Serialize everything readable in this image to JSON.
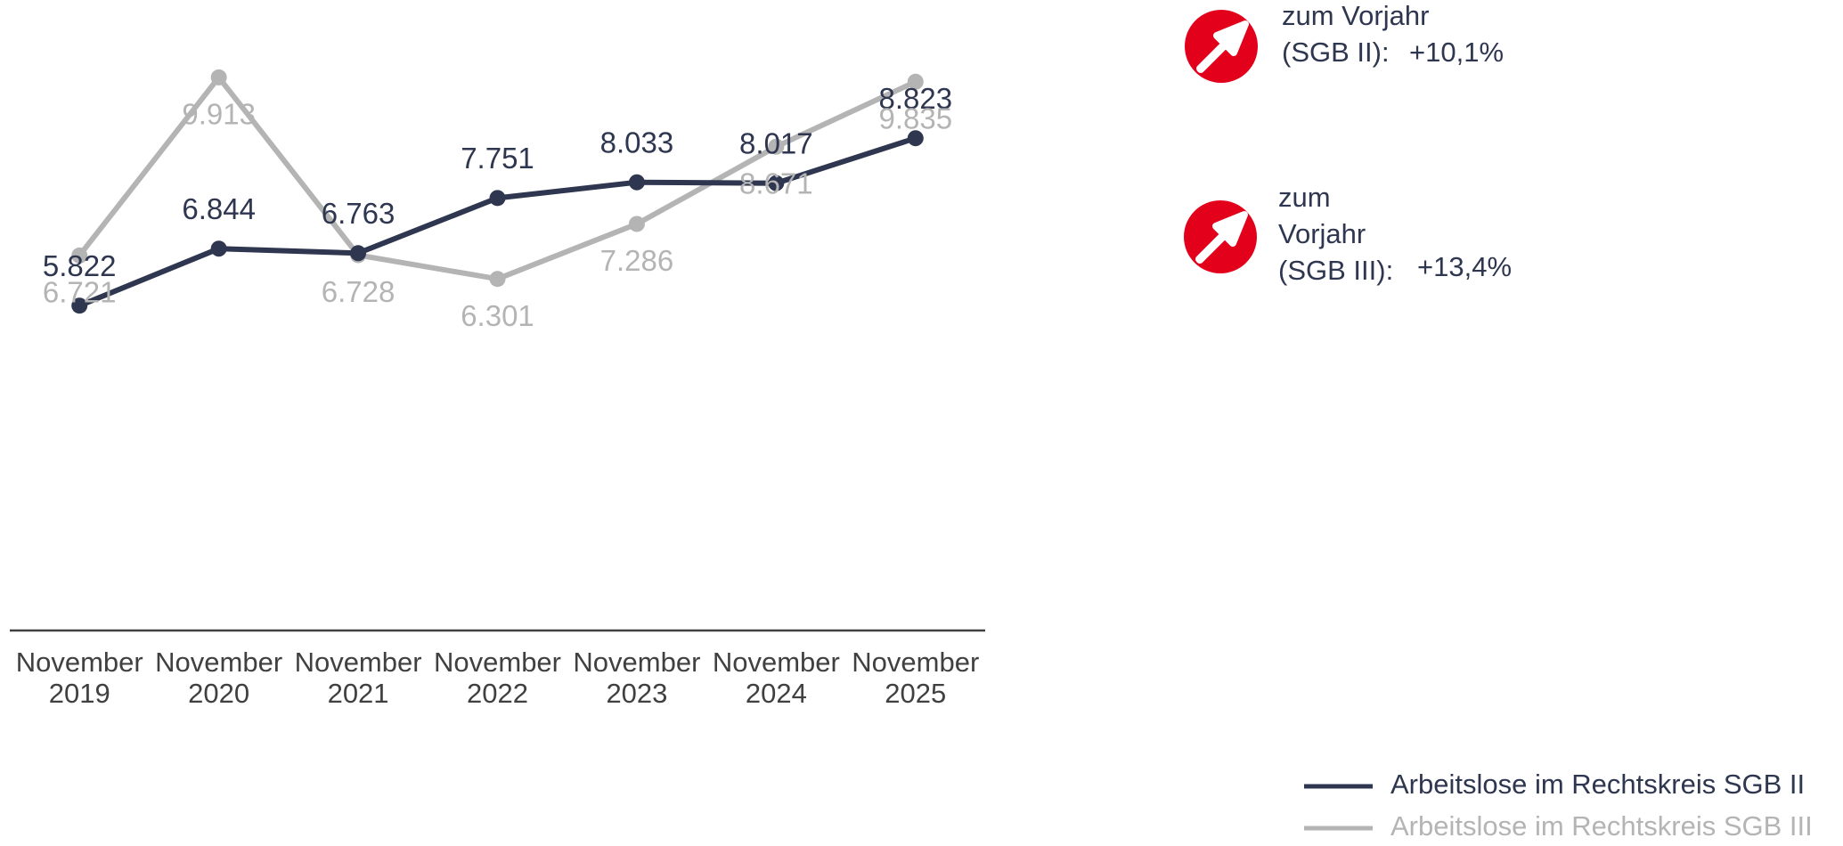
{
  "chart_data": {
    "type": "line",
    "categories": [
      "November 2019",
      "November 2020",
      "November 2021",
      "November 2022",
      "November 2023",
      "November 2024",
      "November 2025"
    ],
    "series": [
      {
        "name": "Arbeitslose im Rechtskreis SGB II",
        "color": "#2e3650",
        "values": [
          5822,
          6844,
          6763,
          7751,
          8033,
          8017,
          8823
        ],
        "value_labels": [
          "5.822",
          "6.844",
          "6.763",
          "7.751",
          "8.033",
          "8.017",
          "8.823"
        ]
      },
      {
        "name": "Arbeitslose im Rechtskreis SGB III",
        "color": "#b4b4b4",
        "values": [
          6721,
          9913,
          6728,
          6301,
          7286,
          8671,
          9835
        ],
        "value_labels": [
          "6.721",
          "9.913",
          "6.728",
          "6.301",
          "7.286",
          "8.671",
          "9.835"
        ]
      }
    ],
    "ylim": [
      0,
      11300
    ],
    "annotations": [
      {
        "lines": [
          "zum Vorjahr",
          "(SGB II):"
        ],
        "value": "+10,1%"
      },
      {
        "lines": [
          "zum",
          "Vorjahr",
          "(SGB III):"
        ],
        "value": "+13,4%"
      }
    ],
    "legend": "bottom-right"
  }
}
